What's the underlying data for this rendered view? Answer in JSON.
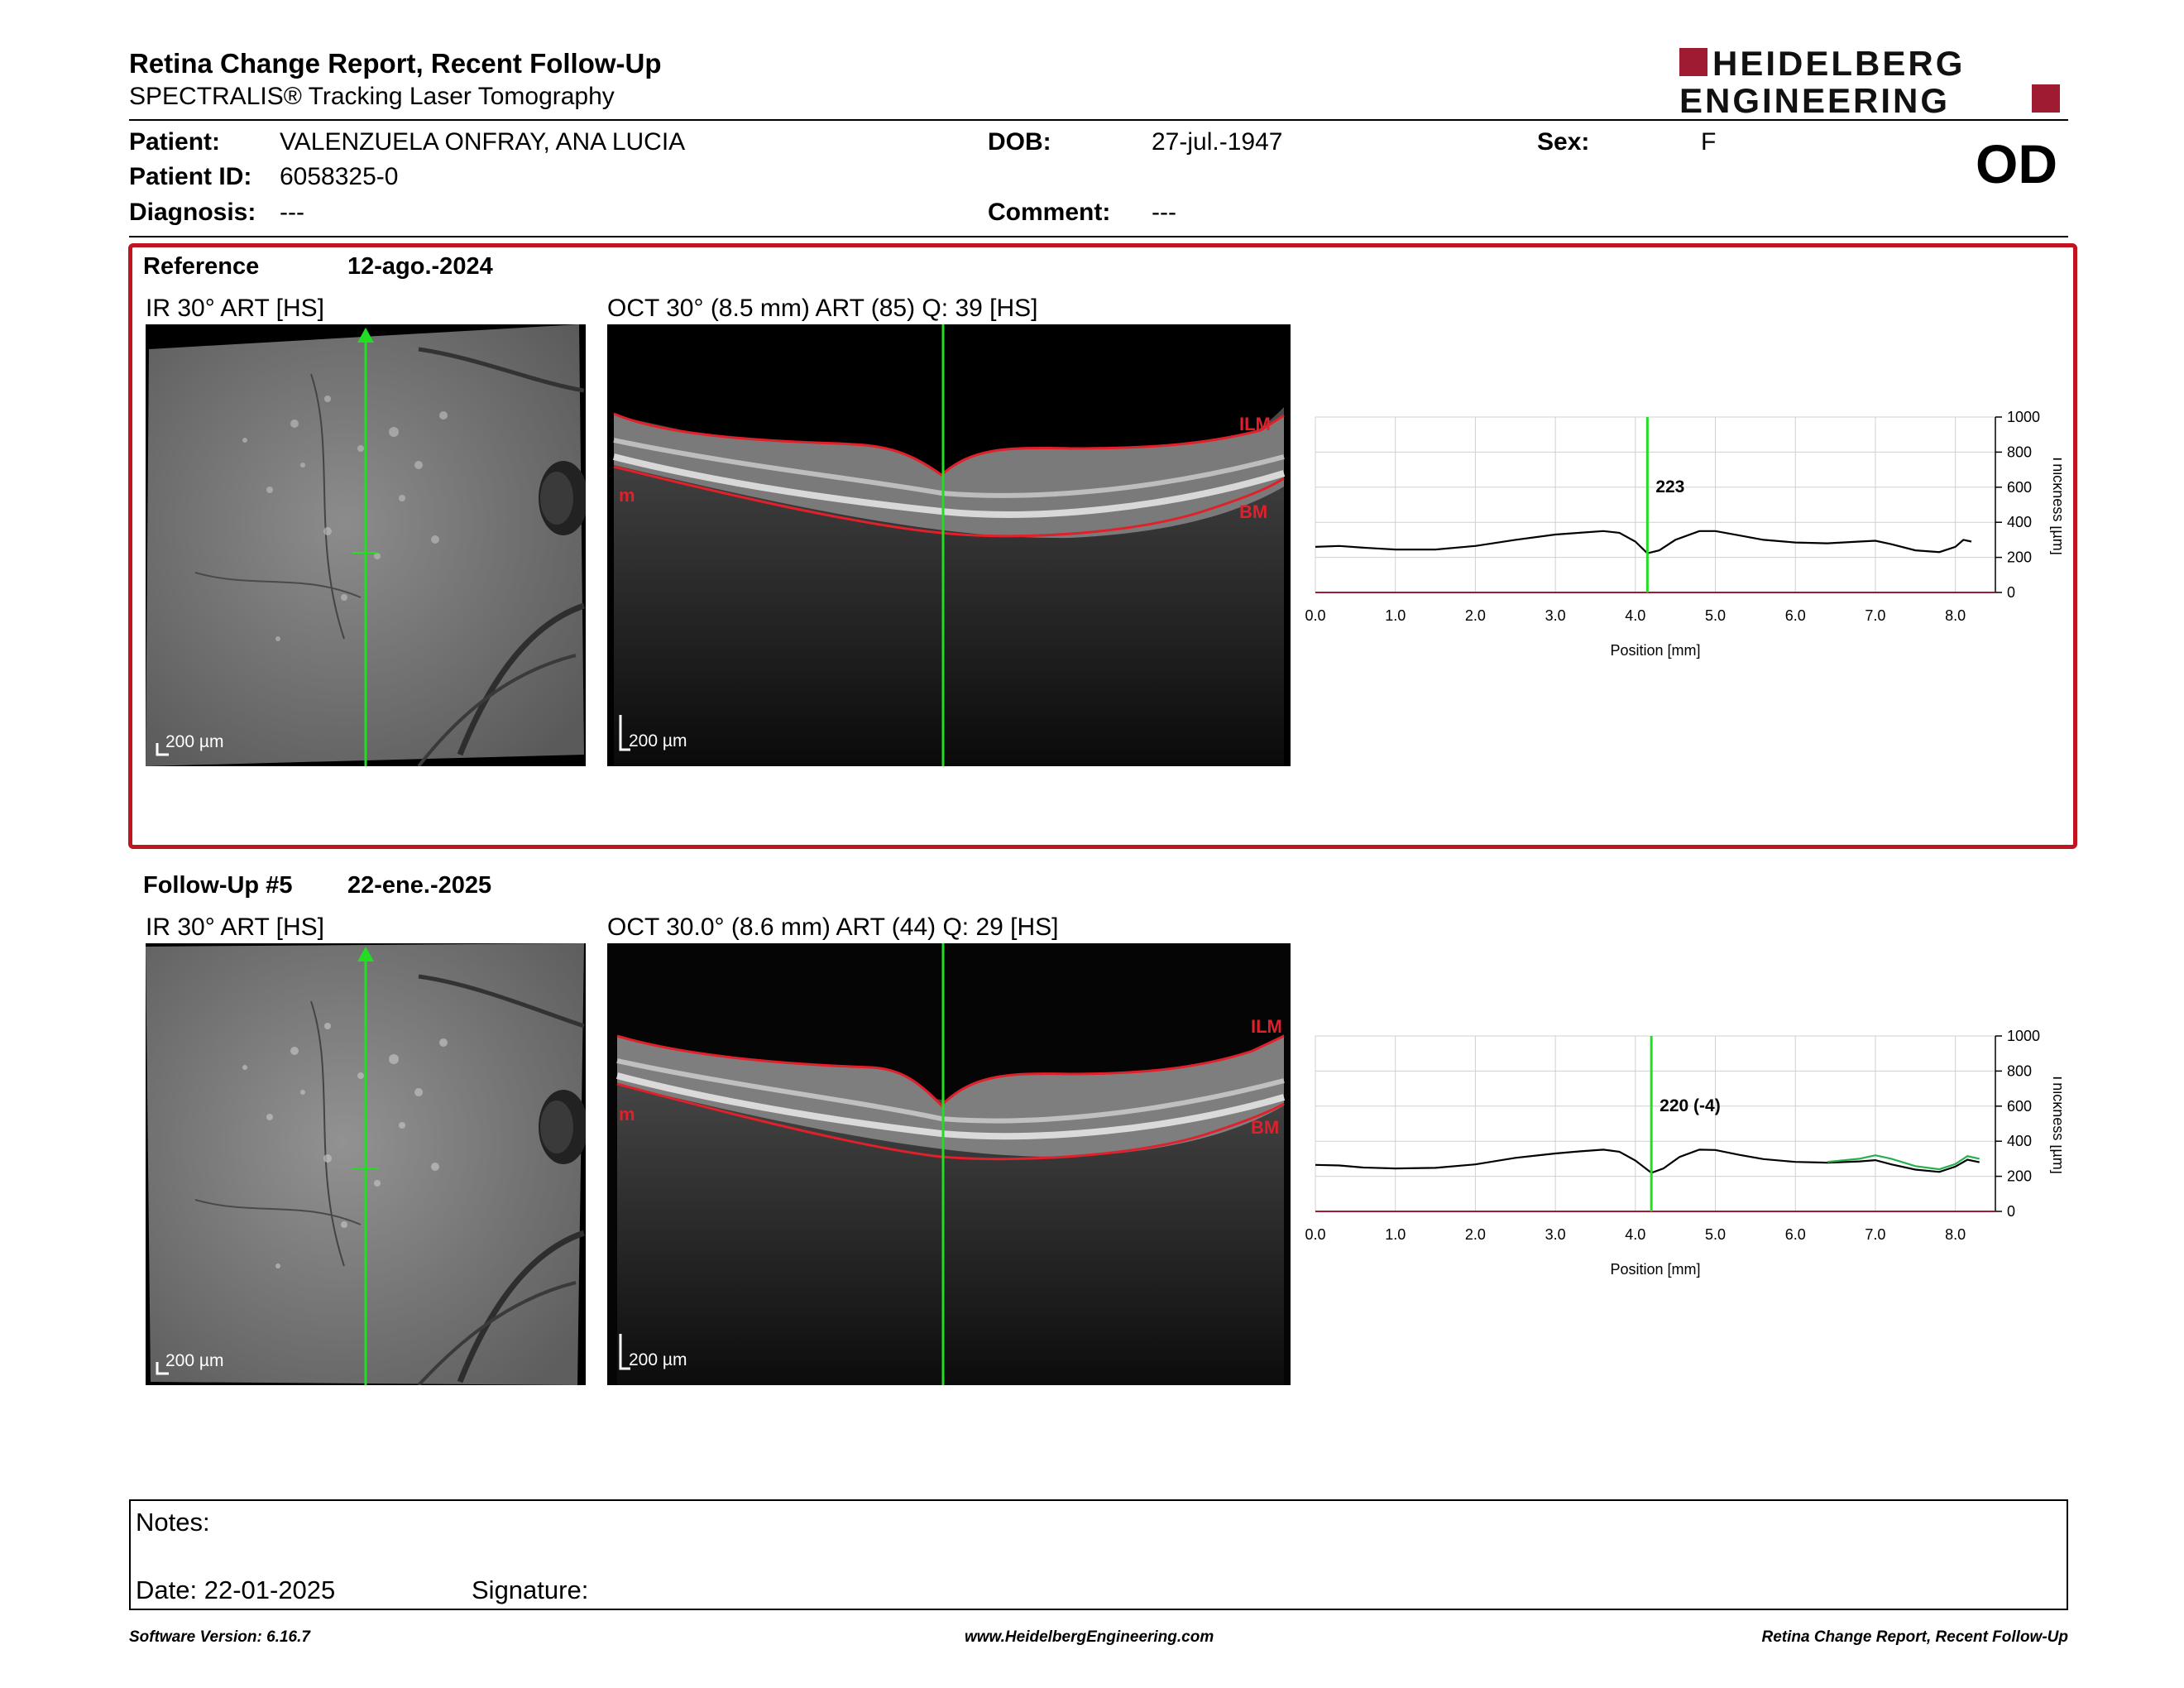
{
  "header": {
    "title": "Retina Change Report, Recent Follow-Up",
    "subtitle": "SPECTRALIS® Tracking Laser Tomography",
    "logo_line1": "HEIDELBERG",
    "logo_line2": "ENGINEERING",
    "eye": "OD"
  },
  "patient": {
    "patient_label": "Patient:",
    "patient_name": "VALENZUELA ONFRAY, ANA LUCIA",
    "dob_label": "DOB:",
    "dob": "27-jul.-1947",
    "sex_label": "Sex:",
    "sex": "F",
    "id_label": "Patient ID:",
    "id": "6058325-0",
    "diagnosis_label": "Diagnosis:",
    "diagnosis": "---",
    "comment_label": "Comment:",
    "comment": "---"
  },
  "reference": {
    "label": "Reference",
    "date": "12-ago.-2024",
    "ir_label": "IR 30° ART [HS]",
    "oct_label": "OCT 30° (8.5 mm) ART (85) Q: 39 [HS]",
    "scale": "200 µm",
    "ilm": "ILM",
    "bm": "BM",
    "m": "m",
    "thickness_value": "223"
  },
  "followup": {
    "label": "Follow-Up #5",
    "date": "22-ene.-2025",
    "ir_label": "IR 30° ART [HS]",
    "oct_label": "OCT 30.0° (8.6 mm) ART (44) Q: 29 [HS]",
    "scale": "200 µm",
    "ilm": "ILM",
    "bm": "BM",
    "m": "m",
    "thickness_value": "220 (-4)"
  },
  "chart_data": [
    {
      "type": "line",
      "title": "",
      "xlabel": "Position [mm]",
      "ylabel": "Thickness [µm]",
      "xlim": [
        0,
        8.5
      ],
      "ylim": [
        0,
        1000
      ],
      "x_ticks": [
        "0.0",
        "1.0",
        "2.0",
        "3.0",
        "4.0",
        "5.0",
        "6.0",
        "7.0",
        "8.0"
      ],
      "y_ticks": [
        "0",
        "200",
        "400",
        "600",
        "800",
        "1000"
      ],
      "marker_x": 4.15,
      "marker_label": "223",
      "series": [
        {
          "x": [
            0.0,
            0.3,
            0.6,
            1.0,
            1.5,
            2.0,
            2.5,
            3.0,
            3.3,
            3.6,
            3.8,
            4.0,
            4.15,
            4.3,
            4.5,
            4.8,
            5.0,
            5.3,
            5.6,
            6.0,
            6.4,
            6.8,
            7.0,
            7.2,
            7.5,
            7.8,
            8.0,
            8.1,
            8.2
          ],
          "values": [
            260,
            265,
            255,
            245,
            245,
            265,
            300,
            330,
            340,
            350,
            340,
            290,
            223,
            240,
            300,
            350,
            350,
            325,
            300,
            285,
            280,
            290,
            295,
            275,
            240,
            230,
            260,
            300,
            290
          ]
        }
      ]
    },
    {
      "type": "line",
      "title": "",
      "xlabel": "Position [mm]",
      "ylabel": "Thickness [µm]",
      "xlim": [
        0,
        8.5
      ],
      "ylim": [
        0,
        1000
      ],
      "x_ticks": [
        "0.0",
        "1.0",
        "2.0",
        "3.0",
        "4.0",
        "5.0",
        "6.0",
        "7.0",
        "8.0"
      ],
      "y_ticks": [
        "0",
        "200",
        "400",
        "600",
        "800",
        "1000"
      ],
      "marker_x": 4.2,
      "marker_label": "220 (-4)",
      "series": [
        {
          "x": [
            0.0,
            0.3,
            0.6,
            1.0,
            1.5,
            2.0,
            2.5,
            3.0,
            3.3,
            3.6,
            3.8,
            4.0,
            4.2,
            4.35,
            4.55,
            4.8,
            5.0,
            5.3,
            5.6,
            6.0,
            6.4,
            6.8,
            7.0,
            7.2,
            7.5,
            7.8,
            8.0,
            8.15,
            8.3
          ],
          "values": [
            265,
            262,
            250,
            245,
            248,
            268,
            305,
            330,
            342,
            352,
            340,
            290,
            220,
            245,
            310,
            352,
            350,
            322,
            298,
            282,
            278,
            285,
            292,
            268,
            238,
            225,
            255,
            295,
            280
          ]
        },
        {
          "x": [
            6.4,
            6.8,
            7.0,
            7.2,
            7.5,
            7.8,
            8.0,
            8.15,
            8.3
          ],
          "values": [
            282,
            300,
            320,
            300,
            258,
            240,
            270,
            315,
            300
          ]
        }
      ]
    }
  ],
  "notes": {
    "notes_label": "Notes:",
    "date_label": "Date: 22-01-2025",
    "signature_label": "Signature:"
  },
  "footer": {
    "software": "Software Version: 6.16.7",
    "website": "www.HeidelbergEngineering.com",
    "report": "Retina Change Report, Recent Follow-Up"
  },
  "colors": {
    "brand_red": "#9e1b32",
    "frame_red": "#c0141e",
    "scan_green": "#22dd22",
    "layer_red": "#e0202a"
  }
}
